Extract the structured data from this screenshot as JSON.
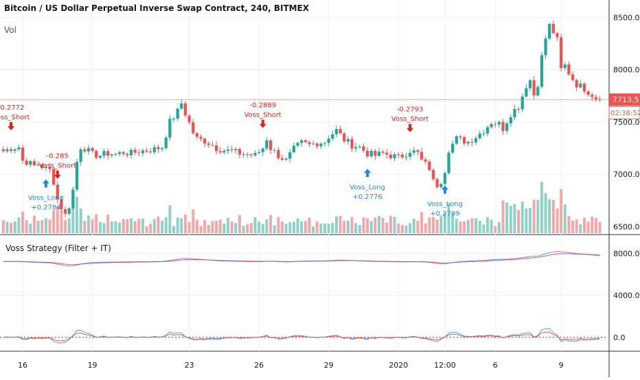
{
  "header": {
    "title": "Bitcoin / US Dollar Perpetual Inverse Swap Contract, 240, BITMEX",
    "volume_label": "Vol"
  },
  "indicator": {
    "title": "Voss Strategy (Filter + IT)"
  },
  "colors": {
    "up": "#26a69a",
    "down": "#ef5350",
    "vol_up": "#8fd1c6",
    "vol_down": "#f4a7a7",
    "short_signal": "#e0201b",
    "long_signal": "#1e88e5",
    "price_tag": "#ef5350",
    "grid": "#eceff2",
    "axis_text": "#131722"
  },
  "price_tag": {
    "price": "7713.5",
    "countdown": "02:38:52"
  },
  "chart_data": [
    {
      "type": "candlestick",
      "series_label": "Price",
      "y_ticks": [
        "8500.0",
        "8000.0",
        "7500.0",
        "7000.0",
        "6500.0"
      ],
      "y_tick_values": [
        8500,
        8000,
        7500,
        7000,
        6500
      ],
      "ylim": [
        6450,
        8600
      ],
      "x_ticks": [
        "16",
        "19",
        "23",
        "26",
        "29",
        "2020",
        "12:00",
        "6",
        "9"
      ],
      "x_tick_positions": [
        5,
        23,
        48,
        66,
        84,
        102,
        114,
        127,
        144
      ],
      "close_path": [
        [
          0,
          7220
        ],
        [
          2,
          7250
        ],
        [
          4,
          7260
        ],
        [
          5,
          7130
        ],
        [
          6,
          7120
        ],
        [
          8,
          7080
        ],
        [
          9,
          7100
        ],
        [
          11,
          7050
        ],
        [
          12,
          7040
        ],
        [
          13,
          6930
        ],
        [
          14,
          6760
        ],
        [
          16,
          6610
        ],
        [
          17,
          6700
        ],
        [
          18,
          6850
        ],
        [
          19,
          7120
        ],
        [
          20,
          7260
        ],
        [
          21,
          7250
        ],
        [
          23,
          7190
        ],
        [
          25,
          7180
        ],
        [
          27,
          7200
        ],
        [
          29,
          7190
        ],
        [
          31,
          7210
        ],
        [
          33,
          7200
        ],
        [
          35,
          7220
        ],
        [
          37,
          7230
        ],
        [
          39,
          7240
        ],
        [
          41,
          7260
        ],
        [
          43,
          7500
        ],
        [
          45,
          7600
        ],
        [
          46,
          7680
        ],
        [
          47,
          7580
        ],
        [
          49,
          7400
        ],
        [
          50,
          7340
        ],
        [
          52,
          7320
        ],
        [
          54,
          7280
        ],
        [
          55,
          7250
        ],
        [
          57,
          7230
        ],
        [
          59,
          7220
        ],
        [
          61,
          7200
        ],
        [
          63,
          7190
        ],
        [
          65,
          7180
        ],
        [
          67,
          7250
        ],
        [
          68,
          7340
        ],
        [
          69,
          7250
        ],
        [
          71,
          7180
        ],
        [
          73,
          7130
        ],
        [
          75,
          7240
        ],
        [
          77,
          7300
        ],
        [
          79,
          7280
        ],
        [
          81,
          7300
        ],
        [
          83,
          7310
        ],
        [
          84,
          7360
        ],
        [
          86,
          7420
        ],
        [
          88,
          7330
        ],
        [
          90,
          7280
        ],
        [
          92,
          7260
        ],
        [
          94,
          7200
        ],
        [
          96,
          7180
        ],
        [
          98,
          7200
        ],
        [
          100,
          7180
        ],
        [
          102,
          7160
        ],
        [
          104,
          7200
        ],
        [
          105,
          7230
        ],
        [
          107,
          7200
        ],
        [
          108,
          7130
        ],
        [
          110,
          7060
        ],
        [
          111,
          6930
        ],
        [
          112,
          6900
        ],
        [
          113,
          6940
        ],
        [
          114,
          7040
        ],
        [
          115,
          7240
        ],
        [
          117,
          7340
        ],
        [
          118,
          7330
        ],
        [
          120,
          7310
        ],
        [
          122,
          7360
        ],
        [
          124,
          7420
        ],
        [
          126,
          7500
        ],
        [
          128,
          7480
        ],
        [
          129,
          7440
        ],
        [
          131,
          7580
        ],
        [
          133,
          7650
        ],
        [
          135,
          7850
        ],
        [
          136,
          7900
        ],
        [
          137,
          7760
        ],
        [
          138,
          7870
        ],
        [
          139,
          8120
        ],
        [
          140,
          8300
        ],
        [
          141,
          8420
        ],
        [
          142,
          8360
        ],
        [
          143,
          8280
        ],
        [
          144,
          8000
        ],
        [
          145,
          8040
        ],
        [
          146,
          7970
        ],
        [
          147,
          7910
        ],
        [
          148,
          7860
        ],
        [
          150,
          7820
        ],
        [
          152,
          7760
        ],
        [
          153,
          7730
        ],
        [
          154,
          7713.5
        ]
      ],
      "volume_max": 100,
      "volume_ylim": [
        0,
        100
      ]
    },
    {
      "type": "line",
      "series_label": "Voss Strategy (Filter + IT)",
      "y_ticks": [
        "8000.0",
        "4000.0",
        "0.0"
      ],
      "y_tick_values": [
        8000,
        4000,
        0
      ],
      "ylim": [
        -800,
        9200
      ],
      "series": [
        {
          "name": "",
          "color": "#2962ff",
          "values_ref": "price"
        },
        {
          "name": "",
          "color": "#ef5350",
          "values_ref": "price_lag"
        }
      ],
      "oscillator": {
        "baseline": 0
      }
    }
  ],
  "signals": [
    {
      "kind": "short",
      "label": "Voss_Short",
      "value": "-0.2772",
      "x": 2
    },
    {
      "kind": "short",
      "label": "Voss_Short",
      "value": "-0.285",
      "x": 14
    },
    {
      "kind": "short",
      "label": "Voss_Short",
      "value": "-0.2889",
      "x": 67
    },
    {
      "kind": "short",
      "label": "Voss_Short",
      "value": "-0.2793",
      "x": 105
    },
    {
      "kind": "long",
      "label": "Voss_Long",
      "value": "+0.2784",
      "x": 11
    },
    {
      "kind": "long",
      "label": "Voss_Long",
      "value": "+0.2776",
      "x": 94
    },
    {
      "kind": "long",
      "label": "Voss_Long",
      "value": "+0.2799",
      "x": 114
    }
  ]
}
